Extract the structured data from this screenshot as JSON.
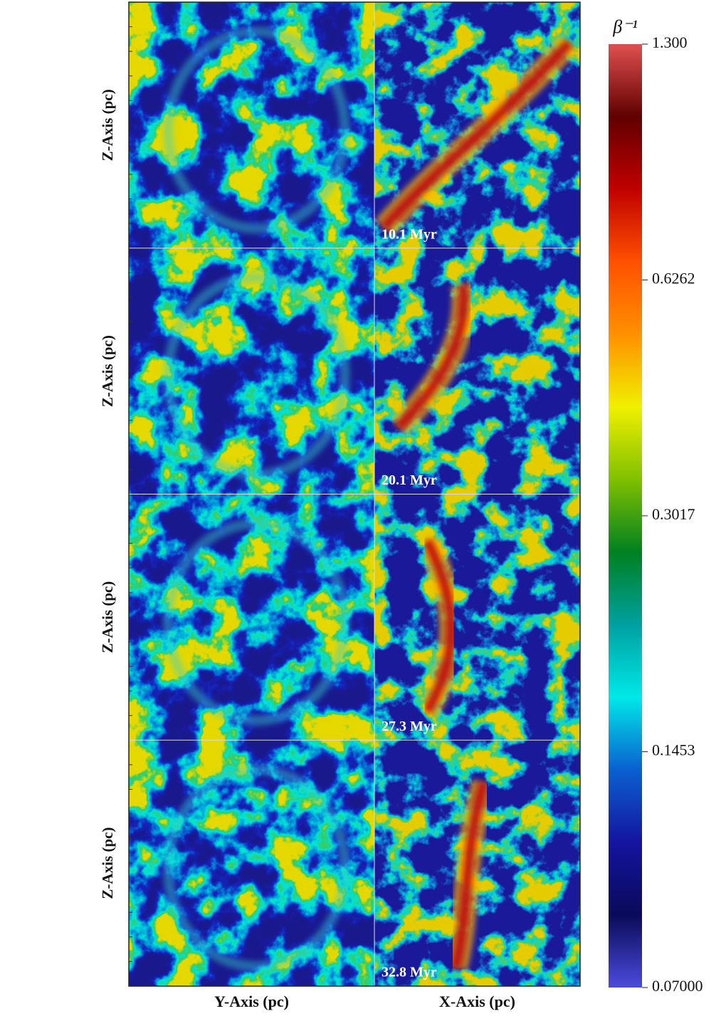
{
  "chart_data": {
    "type": "image-grid",
    "xlabels": [
      "Y-Axis (pc)",
      "X-Axis (pc)"
    ],
    "ylabel": "Z-Axis (pc)",
    "panel_labels": [
      "10.1 Myr",
      "20.1 Myr",
      "27.3 Myr",
      "32.8 Myr"
    ],
    "colorbar": {
      "label": "β⁻¹",
      "lim": [
        0.07,
        1.3
      ],
      "scale": "log",
      "ticks": [
        {
          "value": 1.3,
          "label": "1.300"
        },
        {
          "value": 0.6262,
          "label": "0.6262"
        },
        {
          "value": 0.3017,
          "label": "0.3017"
        },
        {
          "value": 0.1453,
          "label": "0.1453"
        },
        {
          "value": 0.07,
          "label": "0.07000"
        }
      ],
      "colormap": [
        "#4b4bdc",
        "#0a0a5a",
        "#1414a0",
        "#0a60d0",
        "#00e8e8",
        "#00a0a0",
        "#008020",
        "#80c000",
        "#f0f000",
        "#ff9000",
        "#ff5000",
        "#c00000",
        "#600000",
        "#e05050"
      ]
    }
  }
}
